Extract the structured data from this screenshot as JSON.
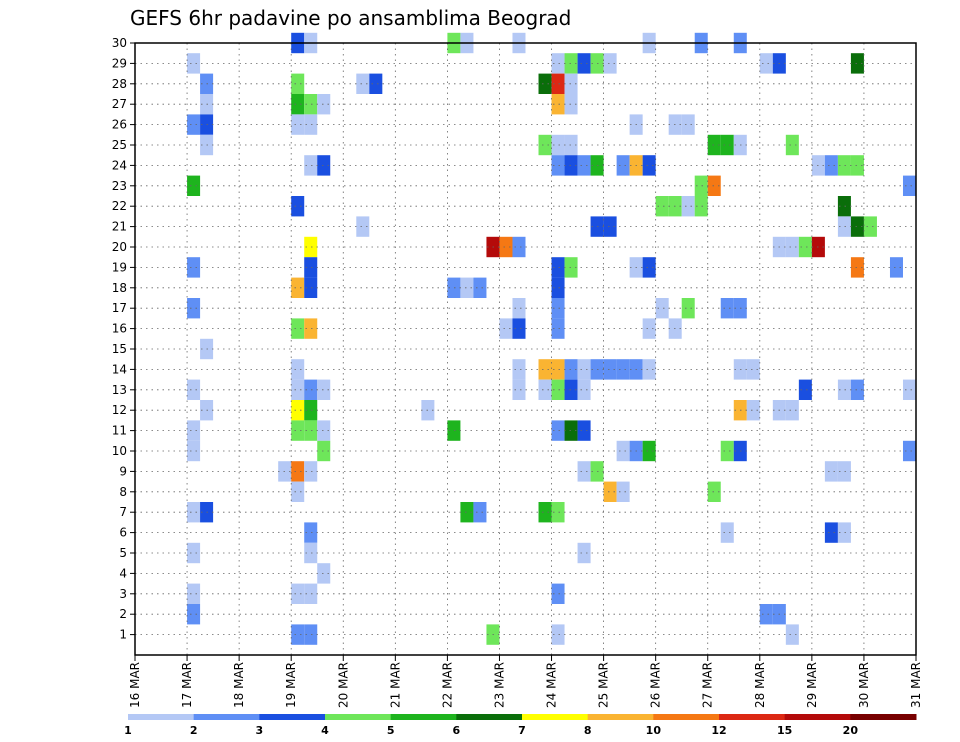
{
  "chart_data": {
    "type": "heatmap",
    "title": "GEFS 6hr padavine po ansamblima Beograd",
    "x_tick_labels": [
      "16 MAR",
      "17 MAR",
      "18 MAR",
      "19 MAR",
      "20 MAR",
      "21 MAR",
      "22 MAR",
      "23 MAR",
      "24 MAR",
      "25 MAR",
      "26 MAR",
      "27 MAR",
      "28 MAR",
      "29 MAR",
      "30 MAR",
      "31 MAR"
    ],
    "y_tick_labels": [
      "1",
      "2",
      "3",
      "4",
      "5",
      "6",
      "7",
      "8",
      "9",
      "10",
      "11",
      "12",
      "13",
      "14",
      "15",
      "16",
      "17",
      "18",
      "19",
      "20",
      "21",
      "22",
      "23",
      "24",
      "25",
      "26",
      "27",
      "28",
      "29",
      "30"
    ],
    "xlim_days": [
      16,
      31
    ],
    "ylim_member": [
      0,
      30
    ],
    "grid": true,
    "colorbar": {
      "placement": "bottom",
      "labels": [
        "1",
        "2",
        "3",
        "4",
        "5",
        "6",
        "7",
        "8",
        "10",
        "12",
        "15",
        "20"
      ],
      "colors": [
        "#b4c8f5",
        "#5f8ff5",
        "#1a4fe0",
        "#6ee65a",
        "#1eb41e",
        "#0a6e0a",
        "#ffff00",
        "#fab432",
        "#f57814",
        "#dc2814",
        "#b40a0a",
        "#780000"
      ]
    },
    "cells": [
      {
        "d": 19.0,
        "m": 30,
        "c": 3
      },
      {
        "d": 19.25,
        "m": 30,
        "c": 1
      },
      {
        "d": 22.0,
        "m": 30,
        "c": 4
      },
      {
        "d": 22.25,
        "m": 30,
        "c": 1
      },
      {
        "d": 23.25,
        "m": 30,
        "c": 1
      },
      {
        "d": 25.75,
        "m": 30,
        "c": 1
      },
      {
        "d": 26.75,
        "m": 30,
        "c": 2
      },
      {
        "d": 27.5,
        "m": 30,
        "c": 2
      },
      {
        "d": 17.0,
        "m": 29,
        "c": 1
      },
      {
        "d": 24.0,
        "m": 29,
        "c": 1
      },
      {
        "d": 24.25,
        "m": 29,
        "c": 4
      },
      {
        "d": 24.5,
        "m": 29,
        "c": 3
      },
      {
        "d": 24.75,
        "m": 29,
        "c": 4
      },
      {
        "d": 25.0,
        "m": 29,
        "c": 1
      },
      {
        "d": 28.0,
        "m": 29,
        "c": 1
      },
      {
        "d": 28.25,
        "m": 29,
        "c": 3
      },
      {
        "d": 29.75,
        "m": 29,
        "c": 6
      },
      {
        "d": 17.25,
        "m": 28,
        "c": 2
      },
      {
        "d": 19.0,
        "m": 28,
        "c": 4
      },
      {
        "d": 20.25,
        "m": 28,
        "c": 1
      },
      {
        "d": 20.5,
        "m": 28,
        "c": 3
      },
      {
        "d": 23.75,
        "m": 28,
        "c": 6
      },
      {
        "d": 24.0,
        "m": 28,
        "c": 10
      },
      {
        "d": 24.25,
        "m": 28,
        "c": 1
      },
      {
        "d": 17.25,
        "m": 27,
        "c": 1
      },
      {
        "d": 19.0,
        "m": 27,
        "c": 5
      },
      {
        "d": 19.25,
        "m": 27,
        "c": 4
      },
      {
        "d": 19.5,
        "m": 27,
        "c": 1
      },
      {
        "d": 24.0,
        "m": 27,
        "c": 8
      },
      {
        "d": 24.25,
        "m": 27,
        "c": 1
      },
      {
        "d": 17.0,
        "m": 26,
        "c": 2
      },
      {
        "d": 17.25,
        "m": 26,
        "c": 3
      },
      {
        "d": 19.0,
        "m": 26,
        "c": 1
      },
      {
        "d": 19.25,
        "m": 26,
        "c": 1
      },
      {
        "d": 25.5,
        "m": 26,
        "c": 1
      },
      {
        "d": 26.25,
        "m": 26,
        "c": 1
      },
      {
        "d": 26.5,
        "m": 26,
        "c": 1
      },
      {
        "d": 17.25,
        "m": 25,
        "c": 1
      },
      {
        "d": 23.75,
        "m": 25,
        "c": 4
      },
      {
        "d": 24.0,
        "m": 25,
        "c": 1
      },
      {
        "d": 24.25,
        "m": 25,
        "c": 1
      },
      {
        "d": 27.0,
        "m": 25,
        "c": 5
      },
      {
        "d": 27.25,
        "m": 25,
        "c": 5
      },
      {
        "d": 27.5,
        "m": 25,
        "c": 1
      },
      {
        "d": 28.5,
        "m": 25,
        "c": 4
      },
      {
        "d": 19.25,
        "m": 24,
        "c": 1
      },
      {
        "d": 19.5,
        "m": 24,
        "c": 3
      },
      {
        "d": 24.0,
        "m": 24,
        "c": 2
      },
      {
        "d": 24.25,
        "m": 24,
        "c": 3
      },
      {
        "d": 24.5,
        "m": 24,
        "c": 2
      },
      {
        "d": 24.75,
        "m": 24,
        "c": 5
      },
      {
        "d": 25.25,
        "m": 24,
        "c": 2
      },
      {
        "d": 25.5,
        "m": 24,
        "c": 8
      },
      {
        "d": 25.75,
        "m": 24,
        "c": 3
      },
      {
        "d": 29.0,
        "m": 24,
        "c": 1
      },
      {
        "d": 29.25,
        "m": 24,
        "c": 2
      },
      {
        "d": 29.5,
        "m": 24,
        "c": 4
      },
      {
        "d": 29.75,
        "m": 24,
        "c": 4
      },
      {
        "d": 17.0,
        "m": 23,
        "c": 5
      },
      {
        "d": 26.75,
        "m": 23,
        "c": 4
      },
      {
        "d": 27.0,
        "m": 23,
        "c": 9
      },
      {
        "d": 30.75,
        "m": 23,
        "c": 2
      },
      {
        "d": 19.0,
        "m": 22,
        "c": 3
      },
      {
        "d": 26.0,
        "m": 22,
        "c": 4
      },
      {
        "d": 26.25,
        "m": 22,
        "c": 4
      },
      {
        "d": 26.5,
        "m": 22,
        "c": 1
      },
      {
        "d": 26.75,
        "m": 22,
        "c": 4
      },
      {
        "d": 29.5,
        "m": 22,
        "c": 6
      },
      {
        "d": 20.25,
        "m": 21,
        "c": 1
      },
      {
        "d": 24.75,
        "m": 21,
        "c": 3
      },
      {
        "d": 25.0,
        "m": 21,
        "c": 3
      },
      {
        "d": 29.5,
        "m": 21,
        "c": 1
      },
      {
        "d": 29.75,
        "m": 21,
        "c": 6
      },
      {
        "d": 30.0,
        "m": 21,
        "c": 4
      },
      {
        "d": 19.25,
        "m": 20,
        "c": 7
      },
      {
        "d": 22.75,
        "m": 20,
        "c": 11
      },
      {
        "d": 23.0,
        "m": 20,
        "c": 9
      },
      {
        "d": 23.25,
        "m": 20,
        "c": 2
      },
      {
        "d": 28.25,
        "m": 20,
        "c": 1
      },
      {
        "d": 28.5,
        "m": 20,
        "c": 1
      },
      {
        "d": 28.75,
        "m": 20,
        "c": 4
      },
      {
        "d": 29.0,
        "m": 20,
        "c": 11
      },
      {
        "d": 17.0,
        "m": 19,
        "c": 2
      },
      {
        "d": 19.25,
        "m": 19,
        "c": 3
      },
      {
        "d": 24.0,
        "m": 19,
        "c": 3
      },
      {
        "d": 24.25,
        "m": 19,
        "c": 4
      },
      {
        "d": 25.5,
        "m": 19,
        "c": 1
      },
      {
        "d": 25.75,
        "m": 19,
        "c": 3
      },
      {
        "d": 29.75,
        "m": 19,
        "c": 9
      },
      {
        "d": 30.5,
        "m": 19,
        "c": 2
      },
      {
        "d": 19.0,
        "m": 18,
        "c": 8
      },
      {
        "d": 19.25,
        "m": 18,
        "c": 3
      },
      {
        "d": 22.0,
        "m": 18,
        "c": 2
      },
      {
        "d": 22.25,
        "m": 18,
        "c": 1
      },
      {
        "d": 22.5,
        "m": 18,
        "c": 2
      },
      {
        "d": 24.0,
        "m": 18,
        "c": 3
      },
      {
        "d": 17.0,
        "m": 17,
        "c": 2
      },
      {
        "d": 23.25,
        "m": 17,
        "c": 1
      },
      {
        "d": 24.0,
        "m": 17,
        "c": 2
      },
      {
        "d": 26.0,
        "m": 17,
        "c": 1
      },
      {
        "d": 26.5,
        "m": 17,
        "c": 4
      },
      {
        "d": 27.25,
        "m": 17,
        "c": 2
      },
      {
        "d": 27.5,
        "m": 17,
        "c": 2
      },
      {
        "d": 19.0,
        "m": 16,
        "c": 4
      },
      {
        "d": 19.25,
        "m": 16,
        "c": 8
      },
      {
        "d": 23.0,
        "m": 16,
        "c": 1
      },
      {
        "d": 23.25,
        "m": 16,
        "c": 3
      },
      {
        "d": 24.0,
        "m": 16,
        "c": 2
      },
      {
        "d": 25.75,
        "m": 16,
        "c": 1
      },
      {
        "d": 26.25,
        "m": 16,
        "c": 1
      },
      {
        "d": 17.25,
        "m": 15,
        "c": 1
      },
      {
        "d": 19.0,
        "m": 14,
        "c": 1
      },
      {
        "d": 23.25,
        "m": 14,
        "c": 1
      },
      {
        "d": 23.75,
        "m": 14,
        "c": 8
      },
      {
        "d": 24.0,
        "m": 14,
        "c": 8
      },
      {
        "d": 24.25,
        "m": 14,
        "c": 2
      },
      {
        "d": 24.5,
        "m": 14,
        "c": 1
      },
      {
        "d": 24.75,
        "m": 14,
        "c": 2
      },
      {
        "d": 25.0,
        "m": 14,
        "c": 2
      },
      {
        "d": 25.25,
        "m": 14,
        "c": 2
      },
      {
        "d": 25.5,
        "m": 14,
        "c": 2
      },
      {
        "d": 25.75,
        "m": 14,
        "c": 1
      },
      {
        "d": 27.5,
        "m": 14,
        "c": 1
      },
      {
        "d": 27.75,
        "m": 14,
        "c": 1
      },
      {
        "d": 17.0,
        "m": 13,
        "c": 1
      },
      {
        "d": 19.0,
        "m": 13,
        "c": 1
      },
      {
        "d": 19.25,
        "m": 13,
        "c": 2
      },
      {
        "d": 19.5,
        "m": 13,
        "c": 1
      },
      {
        "d": 23.25,
        "m": 13,
        "c": 1
      },
      {
        "d": 23.75,
        "m": 13,
        "c": 1
      },
      {
        "d": 24.0,
        "m": 13,
        "c": 4
      },
      {
        "d": 24.25,
        "m": 13,
        "c": 3
      },
      {
        "d": 24.5,
        "m": 13,
        "c": 1
      },
      {
        "d": 28.75,
        "m": 13,
        "c": 3
      },
      {
        "d": 29.5,
        "m": 13,
        "c": 1
      },
      {
        "d": 29.75,
        "m": 13,
        "c": 2
      },
      {
        "d": 30.75,
        "m": 13,
        "c": 1
      },
      {
        "d": 17.25,
        "m": 12,
        "c": 1
      },
      {
        "d": 19.0,
        "m": 12,
        "c": 7
      },
      {
        "d": 19.25,
        "m": 12,
        "c": 5
      },
      {
        "d": 21.5,
        "m": 12,
        "c": 1
      },
      {
        "d": 27.5,
        "m": 12,
        "c": 8
      },
      {
        "d": 27.75,
        "m": 12,
        "c": 1
      },
      {
        "d": 28.25,
        "m": 12,
        "c": 1
      },
      {
        "d": 28.5,
        "m": 12,
        "c": 1
      },
      {
        "d": 17.0,
        "m": 11,
        "c": 1
      },
      {
        "d": 19.0,
        "m": 11,
        "c": 4
      },
      {
        "d": 19.25,
        "m": 11,
        "c": 4
      },
      {
        "d": 19.5,
        "m": 11,
        "c": 1
      },
      {
        "d": 22.0,
        "m": 11,
        "c": 5
      },
      {
        "d": 24.0,
        "m": 11,
        "c": 2
      },
      {
        "d": 24.25,
        "m": 11,
        "c": 6
      },
      {
        "d": 24.5,
        "m": 11,
        "c": 3
      },
      {
        "d": 17.0,
        "m": 10,
        "c": 1
      },
      {
        "d": 19.5,
        "m": 10,
        "c": 4
      },
      {
        "d": 25.25,
        "m": 10,
        "c": 1
      },
      {
        "d": 25.5,
        "m": 10,
        "c": 2
      },
      {
        "d": 25.75,
        "m": 10,
        "c": 5
      },
      {
        "d": 27.25,
        "m": 10,
        "c": 4
      },
      {
        "d": 27.5,
        "m": 10,
        "c": 3
      },
      {
        "d": 30.75,
        "m": 10,
        "c": 2
      },
      {
        "d": 18.75,
        "m": 9,
        "c": 1
      },
      {
        "d": 19.0,
        "m": 9,
        "c": 9
      },
      {
        "d": 19.25,
        "m": 9,
        "c": 1
      },
      {
        "d": 24.5,
        "m": 9,
        "c": 1
      },
      {
        "d": 24.75,
        "m": 9,
        "c": 4
      },
      {
        "d": 29.25,
        "m": 9,
        "c": 1
      },
      {
        "d": 29.5,
        "m": 9,
        "c": 1
      },
      {
        "d": 19.0,
        "m": 8,
        "c": 1
      },
      {
        "d": 25.0,
        "m": 8,
        "c": 8
      },
      {
        "d": 25.25,
        "m": 8,
        "c": 1
      },
      {
        "d": 27.0,
        "m": 8,
        "c": 4
      },
      {
        "d": 17.0,
        "m": 7,
        "c": 1
      },
      {
        "d": 17.25,
        "m": 7,
        "c": 3
      },
      {
        "d": 22.25,
        "m": 7,
        "c": 5
      },
      {
        "d": 22.5,
        "m": 7,
        "c": 2
      },
      {
        "d": 23.75,
        "m": 7,
        "c": 5
      },
      {
        "d": 24.0,
        "m": 7,
        "c": 4
      },
      {
        "d": 19.25,
        "m": 6,
        "c": 2
      },
      {
        "d": 27.25,
        "m": 6,
        "c": 1
      },
      {
        "d": 29.25,
        "m": 6,
        "c": 3
      },
      {
        "d": 29.5,
        "m": 6,
        "c": 1
      },
      {
        "d": 17.0,
        "m": 5,
        "c": 1
      },
      {
        "d": 19.25,
        "m": 5,
        "c": 1
      },
      {
        "d": 24.5,
        "m": 5,
        "c": 1
      },
      {
        "d": 19.5,
        "m": 4,
        "c": 1
      },
      {
        "d": 17.0,
        "m": 3,
        "c": 1
      },
      {
        "d": 19.0,
        "m": 3,
        "c": 1
      },
      {
        "d": 19.25,
        "m": 3,
        "c": 1
      },
      {
        "d": 24.0,
        "m": 3,
        "c": 2
      },
      {
        "d": 17.0,
        "m": 2,
        "c": 2
      },
      {
        "d": 28.0,
        "m": 2,
        "c": 2
      },
      {
        "d": 28.25,
        "m": 2,
        "c": 2
      },
      {
        "d": 19.0,
        "m": 1,
        "c": 2
      },
      {
        "d": 19.25,
        "m": 1,
        "c": 2
      },
      {
        "d": 22.75,
        "m": 1,
        "c": 4
      },
      {
        "d": 24.0,
        "m": 1,
        "c": 1
      },
      {
        "d": 28.5,
        "m": 1,
        "c": 1
      }
    ]
  }
}
